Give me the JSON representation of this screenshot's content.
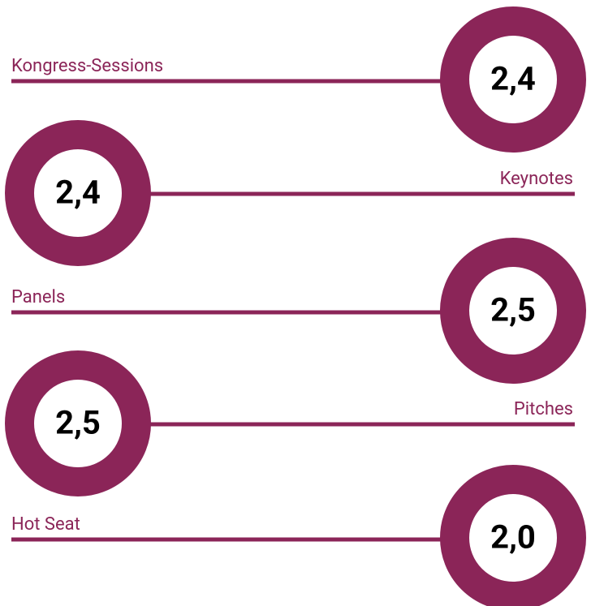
{
  "items": [
    {
      "label": "Kongress-Sessions",
      "value": "2,4"
    },
    {
      "label": "Keynotes",
      "value": "2,4"
    },
    {
      "label": "Panels",
      "value": "2,5"
    },
    {
      "label": "Pitches",
      "value": "2,5"
    },
    {
      "label": "Hot Seat",
      "value": "2,0"
    }
  ]
}
